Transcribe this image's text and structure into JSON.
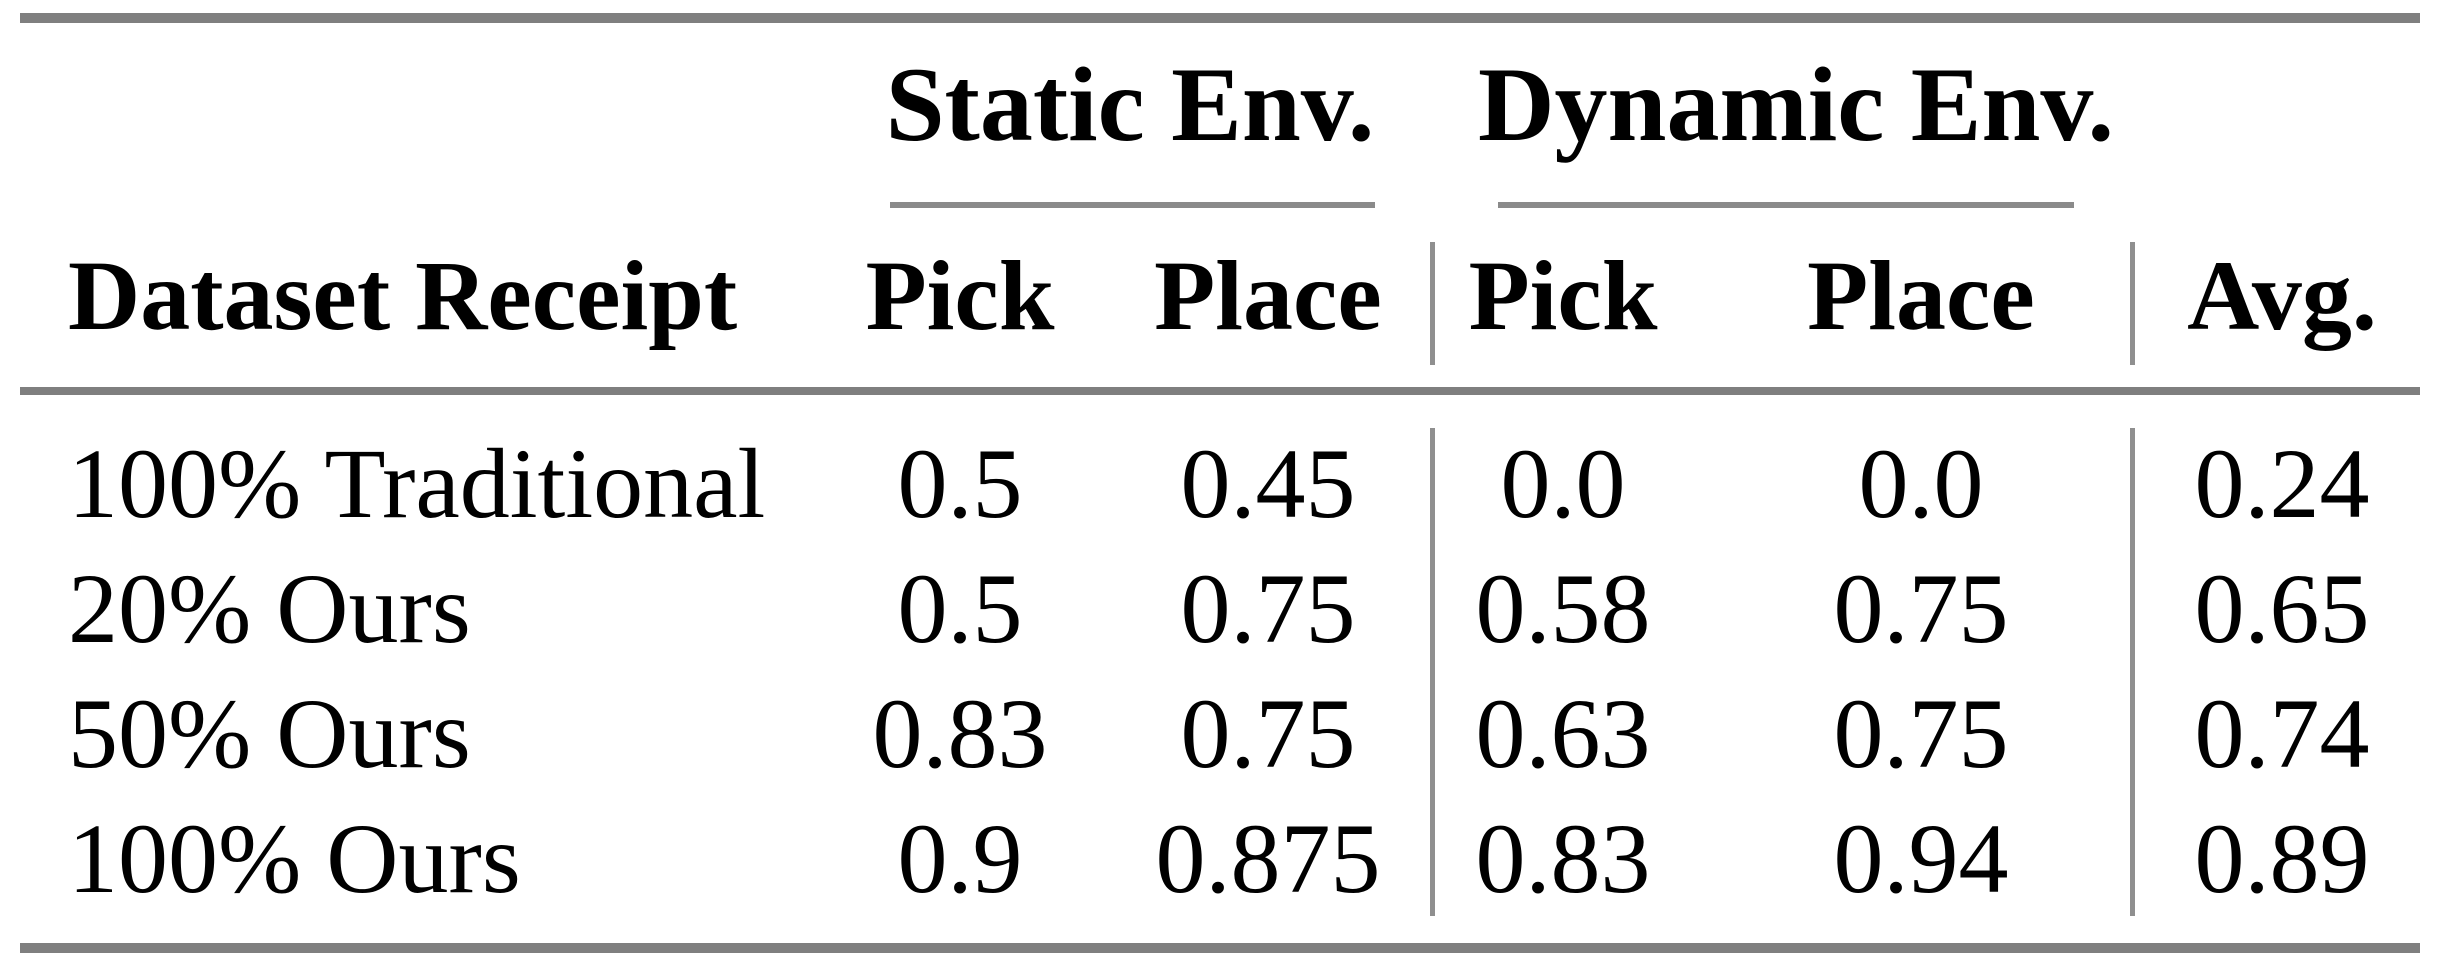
{
  "figure": {
    "type": "table",
    "groups": {
      "static": {
        "label": "Static Env."
      },
      "dynamic": {
        "label": "Dynamic Env."
      }
    },
    "columns": [
      "Dataset Receipt",
      "Pick",
      "Place",
      "Pick",
      "Place",
      "Avg."
    ],
    "rows": [
      {
        "label": "100% Traditional",
        "values": [
          "0.5",
          "0.45",
          "0.0",
          "0.0",
          "0.24"
        ]
      },
      {
        "label": "20% Ours",
        "values": [
          "0.5",
          "0.75",
          "0.58",
          "0.75",
          "0.65"
        ]
      },
      {
        "label": "50% Ours",
        "values": [
          "0.83",
          "0.75",
          "0.63",
          "0.75",
          "0.74"
        ]
      },
      {
        "label": "100% Ours",
        "values": [
          "0.9",
          "0.875",
          "0.83",
          "0.94",
          "0.89"
        ]
      }
    ],
    "colors": {
      "background": "#ffffff",
      "text": "#000000",
      "thick_rule": "#7f7f7f",
      "thin_rule": "#8a8a8a",
      "vertical_rule": "#8f8f8f"
    }
  }
}
